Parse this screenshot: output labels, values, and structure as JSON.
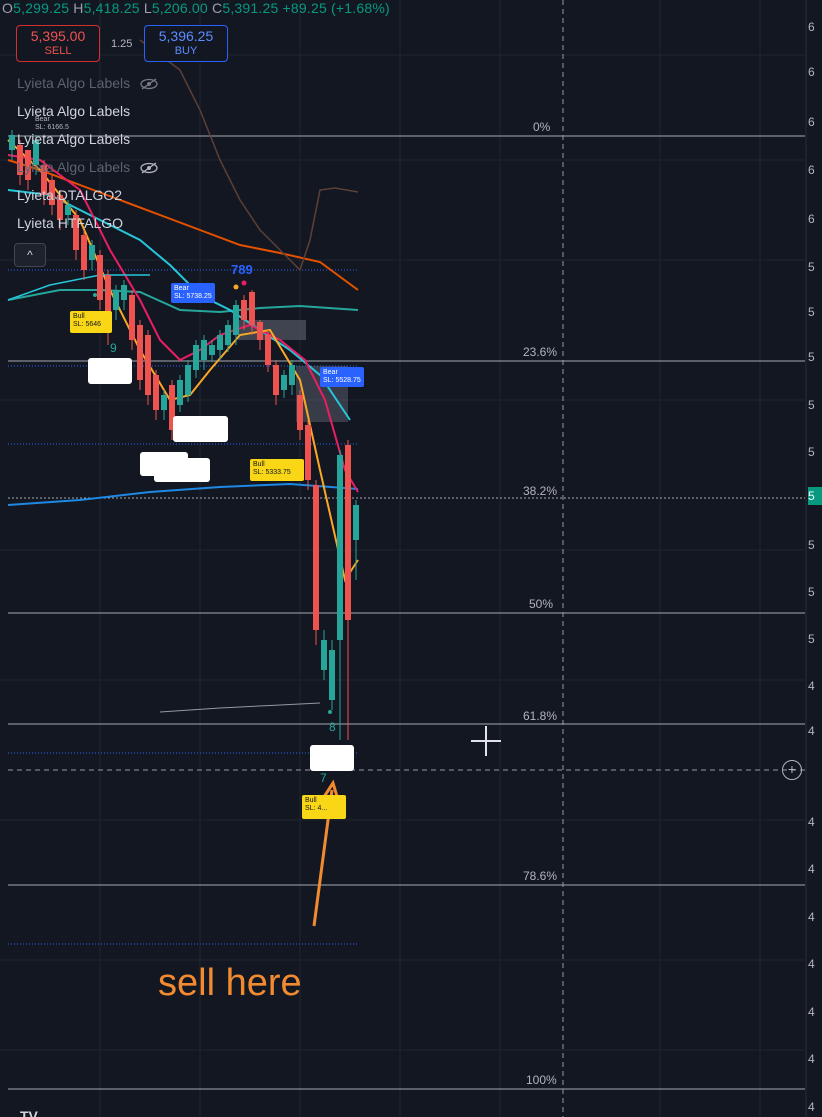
{
  "ohlc": {
    "o_label": "O",
    "o": "5,299.25",
    "h_label": "H",
    "h": "5,418.25",
    "l_label": "L",
    "l": "5,206.00",
    "c_label": "C",
    "c": "5,391.25",
    "change": "+89.25 (+1.68%)"
  },
  "trade": {
    "sell_price": "5,395.00",
    "sell_label": "SELL",
    "spread": "1.25",
    "buy_price": "5,396.25",
    "buy_label": "BUY"
  },
  "indicators": [
    {
      "label": "Lyieta Algo Labels",
      "hidden": true
    },
    {
      "label": "Lyieta Algo Labels",
      "hidden": false
    },
    {
      "label": "Lyieta Algo Labels",
      "hidden": false
    },
    {
      "label": "Lyieta Algo Labels",
      "hidden": true
    },
    {
      "label": "Lyieta DTALGO2",
      "hidden": false
    },
    {
      "label": "Lyieta HTFALGO",
      "hidden": false
    }
  ],
  "collapse_label": "^",
  "fib_levels": [
    {
      "label": "0%"
    },
    {
      "label": "23.6%"
    },
    {
      "label": "38.2%"
    },
    {
      "label": "50%"
    },
    {
      "label": "61.8%"
    },
    {
      "label": "78.6%"
    },
    {
      "label": "100%"
    }
  ],
  "tags": {
    "bear_top": {
      "title": "Bear",
      "sl": "SL: 6166.5"
    },
    "bear_mid": {
      "title": "Bear",
      "sl": "SL: 5738.25"
    },
    "bear_right": {
      "title": "Bear",
      "sl": "SL: 5528.75"
    },
    "bull_left": {
      "title": "Bull",
      "sl": "SL: 5646"
    },
    "bull_mid": {
      "title": "Bull",
      "sl": "SL: 5333.75"
    },
    "bull_bottom": {
      "title": "Bull",
      "sl": "SL: 4..."
    }
  },
  "sequence_labels": {
    "top": "789",
    "left": "9",
    "bottom_eight": "8",
    "bottom_seven": "7"
  },
  "axis_labels": [
    "6",
    "6",
    "6",
    "6",
    "6",
    "5",
    "5",
    "5",
    "5",
    "5",
    "5",
    "5",
    "5",
    "5",
    "4",
    "4",
    "4",
    "4",
    "4",
    "4",
    "4",
    "4",
    "4"
  ],
  "current_price_badge": "5",
  "annotation": "sell here",
  "plus_button": "+",
  "logo": "TV",
  "colors": {
    "background": "#131722",
    "up": "#26a69a",
    "down": "#ef5350",
    "annotation": "#f28a30",
    "bear_tag": "#2962ff",
    "bull_tag": "#f9d616"
  }
}
